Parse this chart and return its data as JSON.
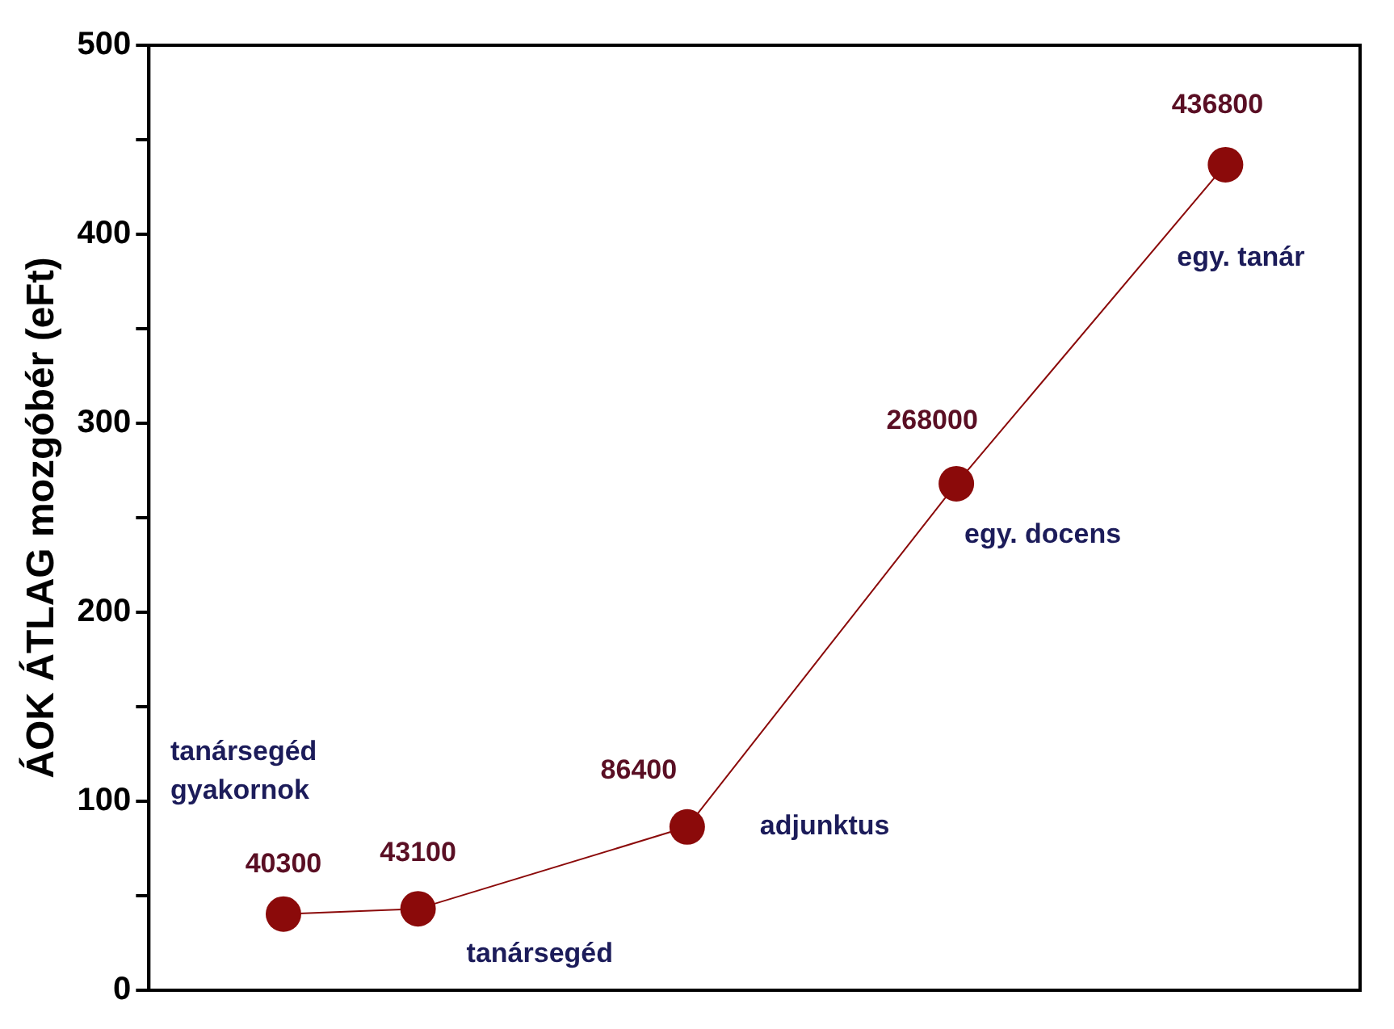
{
  "chart_data": {
    "type": "line",
    "ylabel": "ÁOK ÁTLAG mozgóbér (eFt)",
    "categories": [
      null,
      null,
      null,
      null,
      null,
      null,
      null,
      null,
      null,
      null
    ],
    "series": [
      {
        "color": "#8b0a0a",
        "values": [
          null,
          40.3,
          43.1,
          null,
          86.4,
          null,
          268,
          null,
          436.8,
          null
        ]
      }
    ],
    "ylim": [
      0,
      500
    ],
    "yticks": [
      0,
      {
        "value": 50,
        "label": null
      },
      100,
      {
        "value": 150,
        "label": null
      },
      200,
      {
        "value": 250,
        "label": null
      },
      300,
      {
        "value": 350,
        "label": null
      },
      400,
      {
        "value": 450,
        "label": null
      },
      500
    ],
    "tick_labels": "y",
    "grid": false,
    "legend": false,
    "marker": "circle",
    "line_style": "solid",
    "annotations": [
      "40300",
      "43100",
      "86400",
      "268000",
      "436800",
      "tanársegéd\ngyakornok",
      "tanársegéd",
      "adjunktus",
      "egy. docens",
      "egy. tanár"
    ]
  }
}
